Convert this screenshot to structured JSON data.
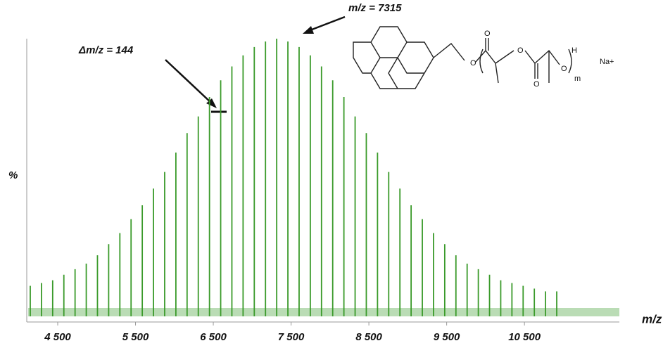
{
  "chart_data": {
    "type": "spectrum",
    "y_label": "%",
    "x_label": "m/z",
    "color": "#3a9a2a",
    "annotations": [
      {
        "text": "Δm/z = 144"
      },
      {
        "text": "m/z = 7315"
      }
    ],
    "structure_labels": [
      "O",
      "O",
      "O",
      "O",
      "O",
      "H",
      "m",
      "Na+"
    ],
    "xlim": [
      4120,
      11720
    ],
    "ylim": [
      0,
      100
    ],
    "xticks": [
      {
        "value": 4500,
        "label": "4 500"
      },
      {
        "value": 5500,
        "label": "5 500"
      },
      {
        "value": 6500,
        "label": "6 500"
      },
      {
        "value": 7500,
        "label": "7 500"
      },
      {
        "value": 8500,
        "label": "8 500"
      },
      {
        "value": 9500,
        "label": "9 500"
      },
      {
        "value": 10500,
        "label": "10 500"
      }
    ],
    "x": [
      4147,
      4291,
      4435,
      4579,
      4723,
      4867,
      5011,
      5155,
      5299,
      5443,
      5587,
      5731,
      5875,
      6019,
      6163,
      6307,
      6451,
      6595,
      6739,
      6883,
      7027,
      7171,
      7315,
      7459,
      7603,
      7747,
      7891,
      8035,
      8179,
      8323,
      8467,
      8611,
      8755,
      8899,
      9043,
      9187,
      9331,
      9475,
      9619,
      9763,
      9907,
      10051,
      10195,
      10339,
      10483,
      10627,
      10771,
      10915
    ],
    "values": [
      11,
      12,
      13,
      15,
      17,
      19,
      22,
      26,
      30,
      35,
      40,
      46,
      52,
      59,
      66,
      72,
      79,
      85,
      90,
      94,
      97,
      99,
      100,
      99,
      97,
      94,
      90,
      85,
      79,
      72,
      66,
      59,
      52,
      46,
      40,
      35,
      30,
      26,
      22,
      19,
      17,
      15,
      13,
      12,
      11,
      10,
      9,
      9
    ]
  }
}
